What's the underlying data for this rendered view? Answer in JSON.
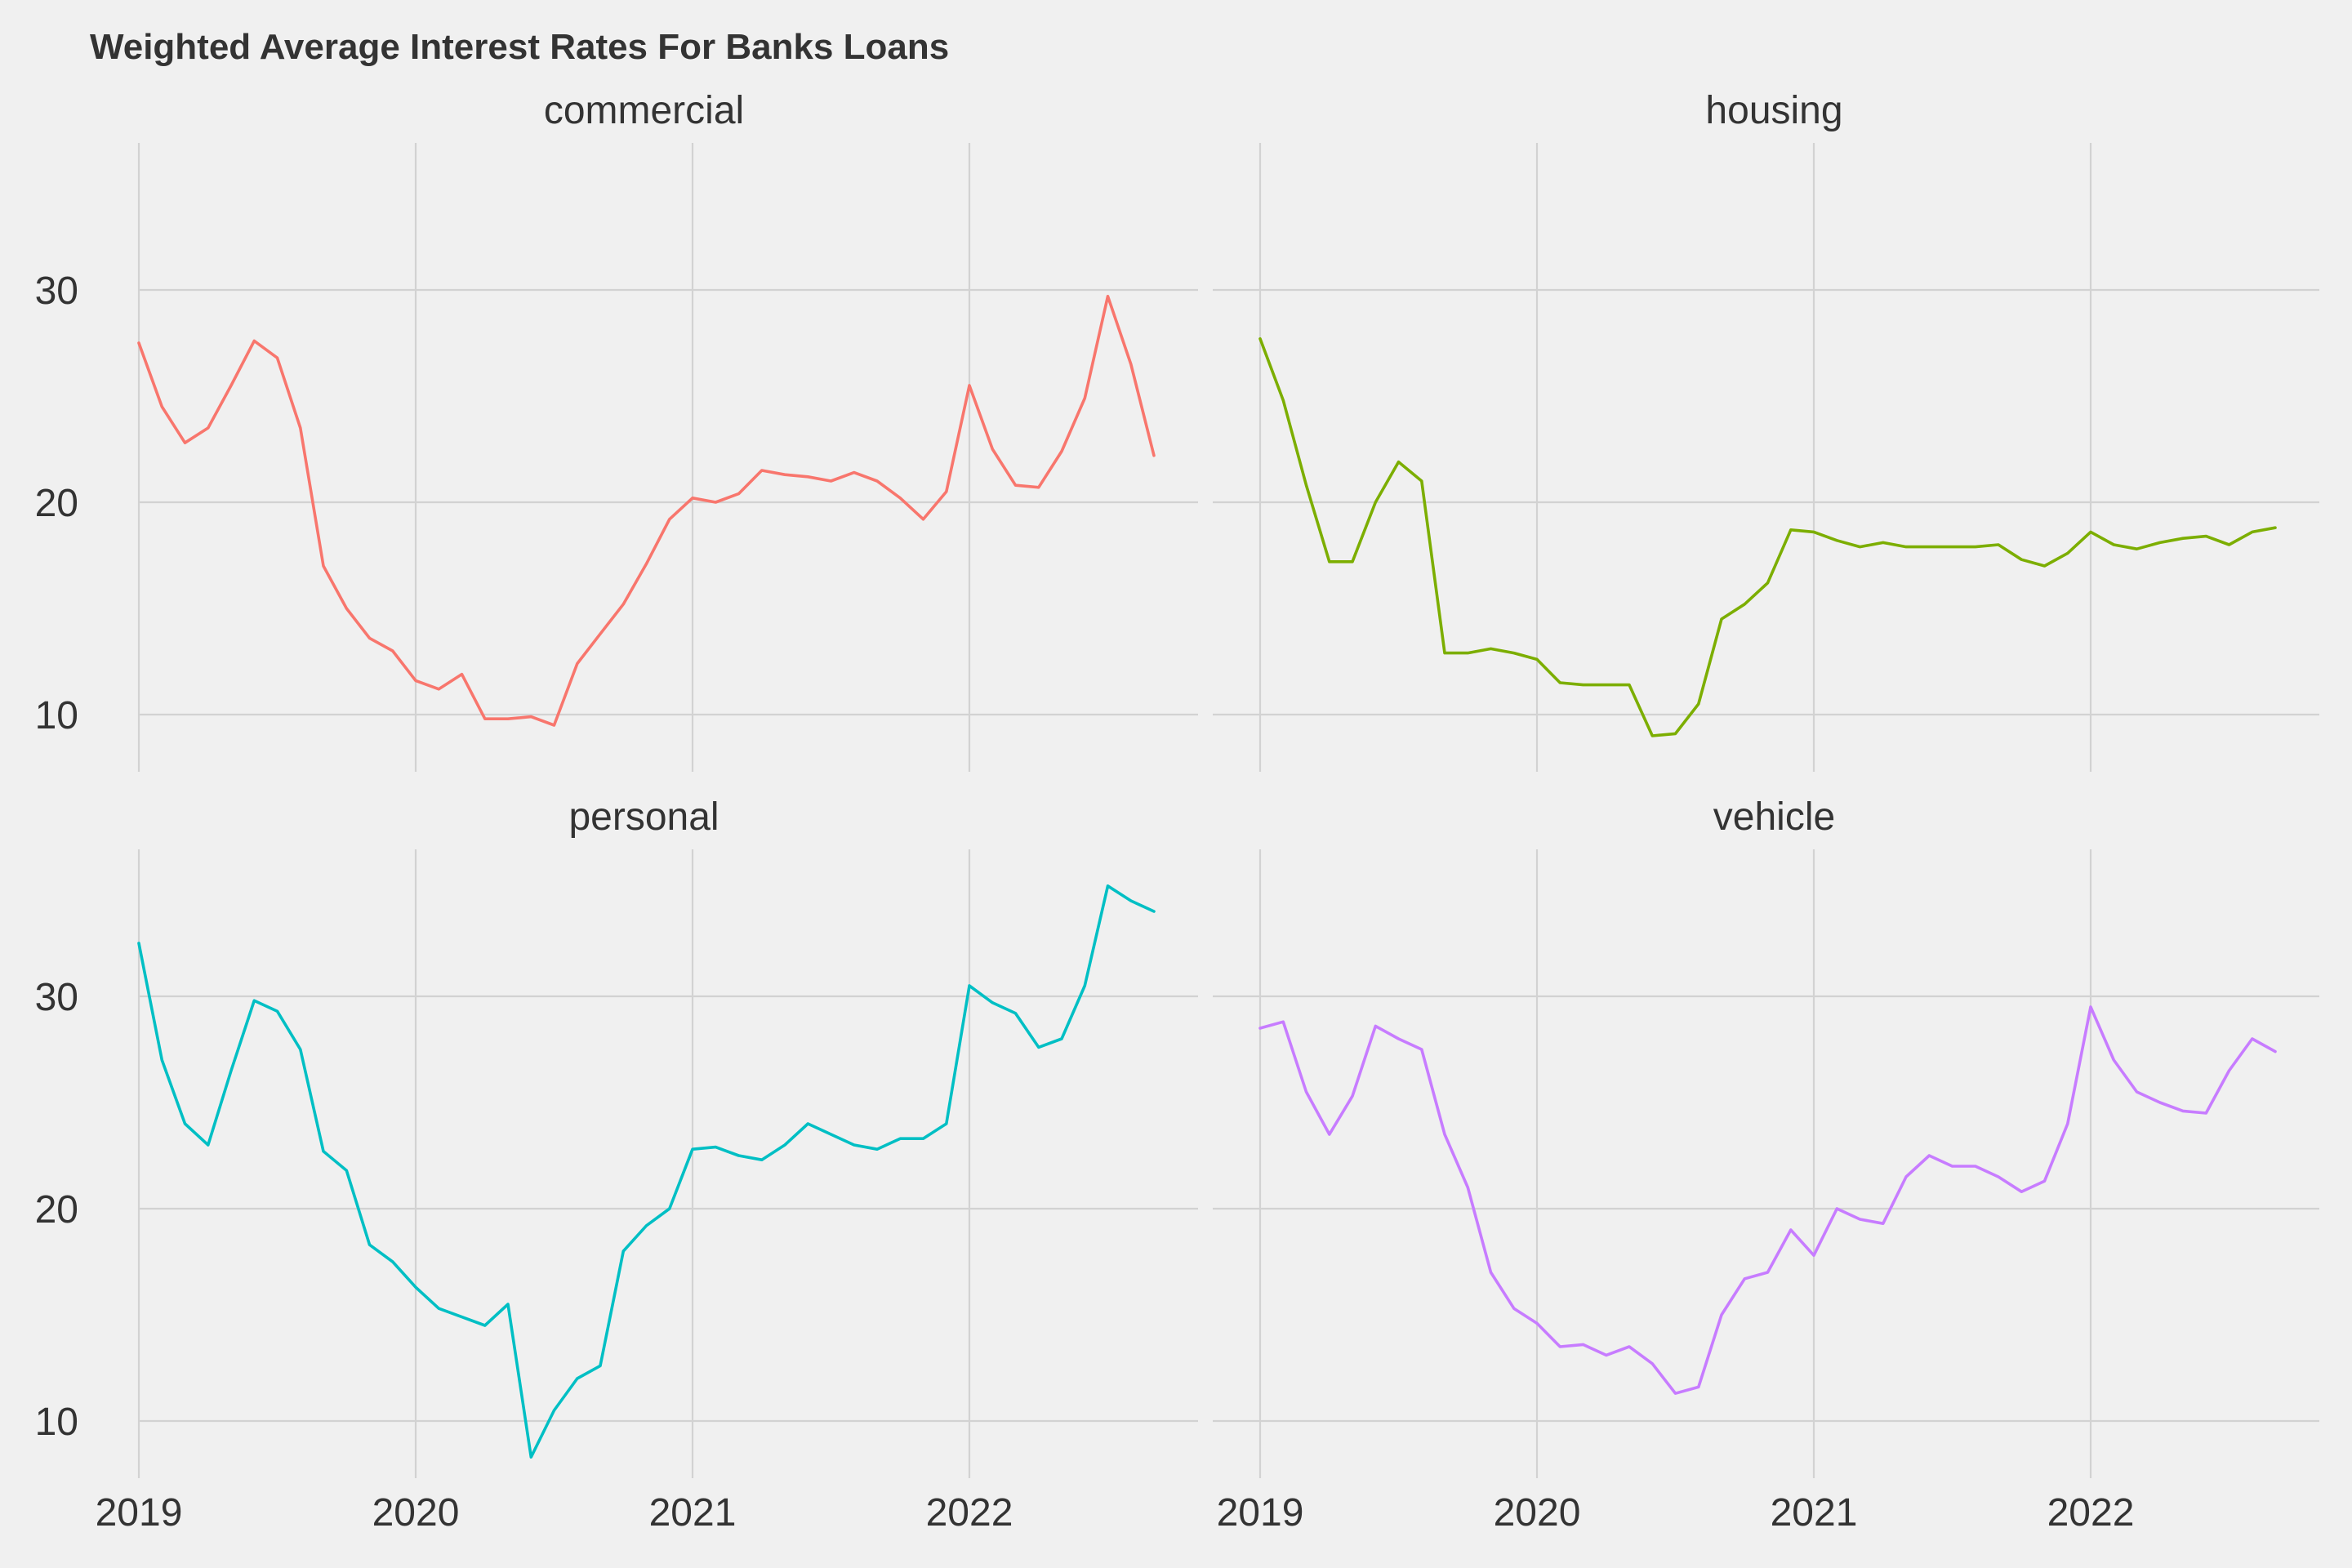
{
  "chart_data": {
    "type": "line",
    "title": "Weighted Average Interest Rates For Banks Loans",
    "xlabel": "",
    "ylabel": "",
    "x_ticks": [
      "2019",
      "2020",
      "2021",
      "2022"
    ],
    "y_ticks": [
      10,
      20,
      30
    ],
    "xlim": [
      "2019-01-01",
      "2022-09-01"
    ],
    "ylim": [
      7.5,
      36.5
    ],
    "grid": true,
    "legend": "none",
    "x": [
      "2019-01",
      "2019-02",
      "2019-03",
      "2019-04",
      "2019-05",
      "2019-06",
      "2019-07",
      "2019-08",
      "2019-09",
      "2019-10",
      "2019-11",
      "2019-12",
      "2020-01",
      "2020-02",
      "2020-03",
      "2020-04",
      "2020-05",
      "2020-06",
      "2020-07",
      "2020-08",
      "2020-09",
      "2020-10",
      "2020-11",
      "2020-12",
      "2021-01",
      "2021-02",
      "2021-03",
      "2021-04",
      "2021-05",
      "2021-06",
      "2021-07",
      "2021-08",
      "2021-09",
      "2021-10",
      "2021-11",
      "2021-12",
      "2022-01",
      "2022-02",
      "2022-03",
      "2022-04",
      "2022-05",
      "2022-06",
      "2022-07",
      "2022-08",
      "2022-09"
    ],
    "series": [
      {
        "name": "commercial",
        "color": "#f8766d",
        "values": [
          27.5,
          24.5,
          22.8,
          23.5,
          25.5,
          27.6,
          26.8,
          23.5,
          17.0,
          15.0,
          13.6,
          13.0,
          11.6,
          11.2,
          11.9,
          9.8,
          9.8,
          9.9,
          9.5,
          12.4,
          13.8,
          15.2,
          17.1,
          19.2,
          20.2,
          20.0,
          20.4,
          21.5,
          21.3,
          21.2,
          21.0,
          21.4,
          21.0,
          20.2,
          19.2,
          20.5,
          25.5,
          22.5,
          20.8,
          20.7,
          22.4,
          24.9,
          29.7,
          26.5,
          22.2
        ]
      },
      {
        "name": "housing",
        "color": "#7cae00",
        "values": [
          27.7,
          24.8,
          20.8,
          17.2,
          17.2,
          20.0,
          21.9,
          21.0,
          12.9,
          12.9,
          13.1,
          12.9,
          12.6,
          11.5,
          11.4,
          11.4,
          11.4,
          9.0,
          9.1,
          10.5,
          14.5,
          15.2,
          16.2,
          18.7,
          18.6,
          18.2,
          17.9,
          18.1,
          17.9,
          17.9,
          17.9,
          17.9,
          18.0,
          17.3,
          17.0,
          17.6,
          18.6,
          18.0,
          17.8,
          18.1,
          18.3,
          18.4,
          18.0,
          18.6,
          18.8
        ]
      },
      {
        "name": "personal",
        "color": "#00bfc4",
        "values": [
          32.5,
          27.0,
          24.0,
          23.0,
          26.5,
          29.8,
          29.3,
          27.5,
          22.7,
          21.8,
          18.3,
          17.5,
          16.3,
          15.3,
          14.9,
          14.5,
          15.5,
          8.3,
          10.5,
          12.0,
          12.6,
          18.0,
          19.2,
          20.0,
          22.8,
          22.9,
          22.5,
          22.3,
          23.0,
          24.0,
          23.5,
          23.0,
          22.8,
          23.3,
          23.3,
          24.0,
          30.5,
          29.7,
          29.2,
          27.6,
          28.0,
          30.5,
          35.2,
          34.5,
          34.0
        ]
      },
      {
        "name": "vehicle",
        "color": "#c77cff",
        "values": [
          28.5,
          28.8,
          25.5,
          23.5,
          25.3,
          28.6,
          28.0,
          27.5,
          23.5,
          21.0,
          17.0,
          15.3,
          14.6,
          13.5,
          13.6,
          13.1,
          13.5,
          12.7,
          11.3,
          11.6,
          15.0,
          16.7,
          17.0,
          19.0,
          17.8,
          20.0,
          19.5,
          19.3,
          21.5,
          22.5,
          22.0,
          22.0,
          21.5,
          20.8,
          21.3,
          24.0,
          29.5,
          27.0,
          25.5,
          25.0,
          24.6,
          24.5,
          26.5,
          28.0,
          27.4
        ]
      }
    ]
  }
}
